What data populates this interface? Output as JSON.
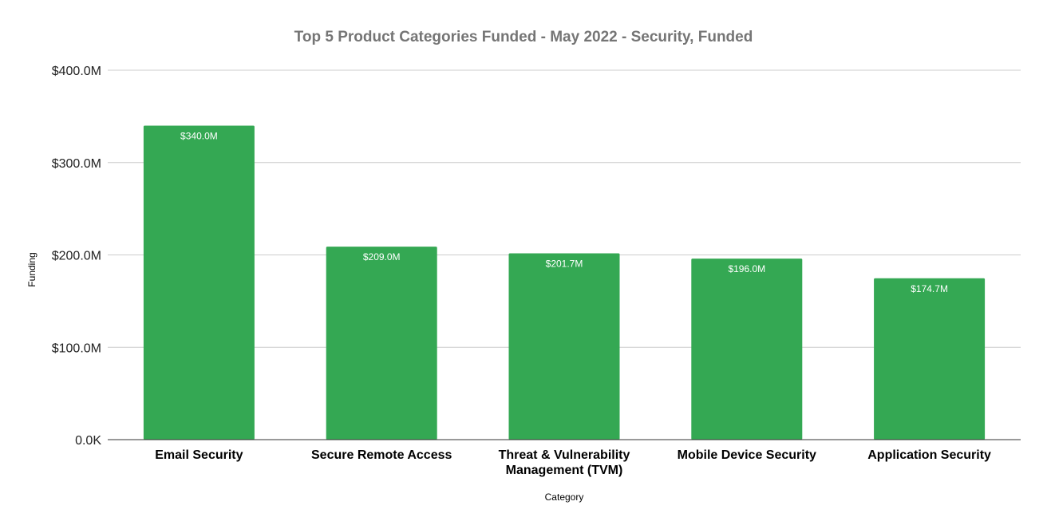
{
  "chart_data": {
    "type": "bar",
    "title": "Top 5 Product Categories Funded - May 2022 - Security, Funded",
    "xlabel": "Category",
    "ylabel": "Funding",
    "categories": [
      [
        "Email Security"
      ],
      [
        "Secure Remote Access"
      ],
      [
        "Threat & Vulnerability",
        "Management (TVM)"
      ],
      [
        "Mobile Device Security"
      ],
      [
        "Application Security"
      ]
    ],
    "values": [
      340.0,
      209.0,
      201.7,
      196.0,
      174.7
    ],
    "data_labels": [
      "$340.0M",
      "$209.0M",
      "$201.7M",
      "$196.0M",
      "$174.7M"
    ],
    "value_unit": "millions USD",
    "ylim": [
      0,
      400
    ],
    "y_ticks": [
      0,
      100,
      200,
      300,
      400
    ],
    "y_tick_labels": [
      "0.0K",
      "$100.0M",
      "$200.0M",
      "$300.0M",
      "$400.0M"
    ],
    "grid": true,
    "legend": "none",
    "colors": {
      "bar": "#34a853",
      "title": "#757575",
      "grid": "#cccccc",
      "baseline": "#333333",
      "data_label": "#ffffff"
    }
  }
}
